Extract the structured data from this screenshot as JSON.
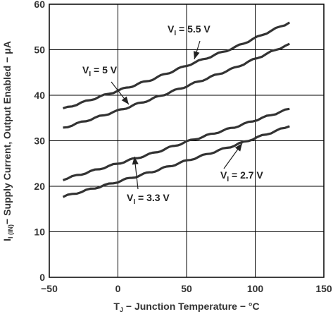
{
  "chart_data": {
    "type": "line",
    "xlabel": {
      "pre": "T",
      "sub": "J",
      "post": " − Junction Temperature − °C"
    },
    "ylabel": {
      "pre": "I",
      "sub": "I (IN)",
      "post": "− Supply Current, Output Enabled − μA"
    },
    "xlim": [
      -50,
      150
    ],
    "ylim": [
      0,
      60
    ],
    "xticks": [
      -50,
      0,
      50,
      100,
      150
    ],
    "yticks": [
      0,
      10,
      20,
      30,
      40,
      50,
      60
    ],
    "grid": true,
    "colors": {
      "line": "#333333",
      "grid": "#000000"
    },
    "series": [
      {
        "name": "V_I = 5.5 V",
        "label": {
          "pre": "V",
          "sub": "I",
          "post": " = 5.5 V"
        },
        "x": [
          -40,
          0,
          25,
          50,
          85,
          125
        ],
        "y": [
          37.0,
          41.0,
          43.5,
          46.5,
          50.5,
          56.0
        ]
      },
      {
        "name": "V_I = 5 V",
        "label": {
          "pre": "V",
          "sub": "I",
          "post": " = 5 V"
        },
        "x": [
          -40,
          0,
          25,
          50,
          85,
          125
        ],
        "y": [
          32.8,
          36.6,
          39.2,
          42.0,
          46.0,
          51.3
        ]
      },
      {
        "name": "V_I = 3.3 V",
        "label": {
          "pre": "V",
          "sub": "I",
          "post": " = 3.3 V"
        },
        "x": [
          -40,
          0,
          25,
          50,
          85,
          125
        ],
        "y": [
          21.5,
          25.0,
          27.2,
          29.8,
          33.0,
          37.0
        ]
      },
      {
        "name": "V_I = 2.7 V",
        "label": {
          "pre": "V",
          "sub": "I",
          "post": " = 2.7 V"
        },
        "x": [
          -40,
          0,
          25,
          50,
          85,
          125
        ],
        "y": [
          17.7,
          21.0,
          23.2,
          25.6,
          29.0,
          33.2
        ]
      }
    ]
  }
}
